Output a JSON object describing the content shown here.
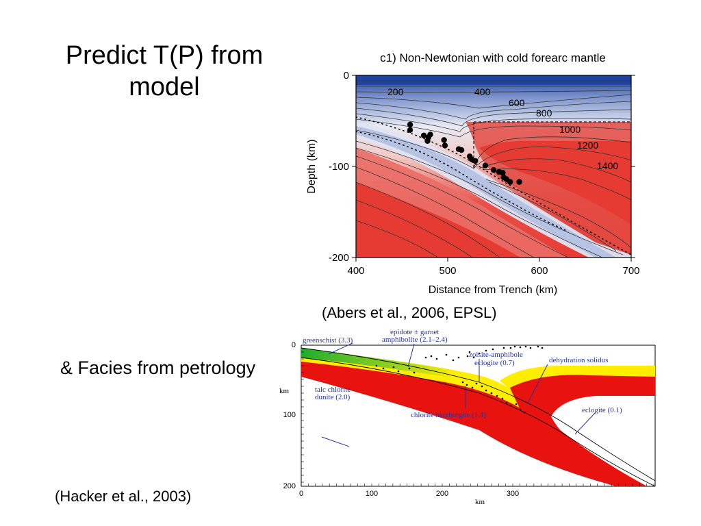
{
  "slide": {
    "title_line1": "Predict T(P) from",
    "title_line2": "model",
    "facies_label": "& Facies from petrology",
    "citation_top": "(Abers et al., 2006, EPSL)",
    "citation_bottom": "(Hacker et al., 2003)"
  },
  "chart_data": [
    {
      "type": "heatmap",
      "title": "c1) Non-Newtonian with cold forearc mantle",
      "xlabel": "Distance from Trench (km)",
      "ylabel": "Depth (km)",
      "xlim": [
        400,
        700
      ],
      "ylim": [
        -200,
        0
      ],
      "x_ticks": [
        "400",
        "500",
        "600",
        "700"
      ],
      "y_ticks": [
        "0",
        "-100",
        "-200"
      ],
      "contour_labels": [
        "200",
        "400",
        "600",
        "800",
        "1000",
        "1200",
        "1400"
      ],
      "colors": {
        "cold": "#1a3fa0",
        "hot": "#e53b32",
        "mid": "#ffffff"
      },
      "earthquakes": [
        {
          "x": 459,
          "y": -54
        },
        {
          "x": 459,
          "y": -60
        },
        {
          "x": 474,
          "y": -66
        },
        {
          "x": 479,
          "y": -68
        },
        {
          "x": 481,
          "y": -65
        },
        {
          "x": 478,
          "y": -72
        },
        {
          "x": 496,
          "y": -71
        },
        {
          "x": 497,
          "y": -77
        },
        {
          "x": 512,
          "y": -81
        },
        {
          "x": 515,
          "y": -82
        },
        {
          "x": 524,
          "y": -89
        },
        {
          "x": 526,
          "y": -92
        },
        {
          "x": 530,
          "y": -94
        },
        {
          "x": 541,
          "y": -99
        },
        {
          "x": 550,
          "y": -104
        },
        {
          "x": 556,
          "y": -106
        },
        {
          "x": 560,
          "y": -107
        },
        {
          "x": 561,
          "y": -112
        },
        {
          "x": 564,
          "y": -114
        },
        {
          "x": 568,
          "y": -117
        },
        {
          "x": 578,
          "y": -117
        }
      ]
    },
    {
      "type": "diagram",
      "xlabel": "km",
      "ylabel": "km",
      "x_ticks": [
        "0",
        "100",
        "200",
        "300"
      ],
      "y_ticks": [
        "0",
        "100",
        "200"
      ],
      "facies_labels": {
        "greenschist": "greenschist (3.3)",
        "epidote_line1": "epidote ± garnet",
        "epidote_line2": "amphibolite (2.1–2.4)",
        "zoisite": "zoisite-amphibole",
        "eclogite07": "eclogite (0.7)",
        "dehydration": "dehydration solidus",
        "talc_line1": "talc chlorite",
        "talc_line2": "dunite (2.0)",
        "chlorite": "chlorite harzburgite (1.4)",
        "eclogite01": "eclogite (0.1)"
      },
      "colors": {
        "red": "#e8130f",
        "yellow": "#ffee00",
        "green": "#2db92d",
        "label": "#2433a0"
      }
    }
  ]
}
